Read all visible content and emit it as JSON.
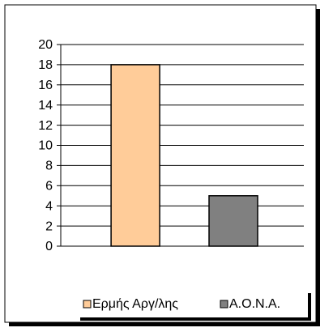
{
  "chart_data": {
    "type": "bar",
    "categories": [
      null
    ],
    "series": [
      {
        "name": "Ερμής Αργ/λης",
        "color": "#ffcc99",
        "values": [
          18
        ]
      },
      {
        "name": "Α.Ο.Ν.Α.",
        "color": "#808080",
        "values": [
          5
        ]
      }
    ],
    "ylim": [
      0,
      20
    ],
    "yticks": [
      0,
      2,
      4,
      6,
      8,
      10,
      12,
      14,
      16,
      18,
      20
    ],
    "grid": true,
    "legend": "bottom"
  }
}
